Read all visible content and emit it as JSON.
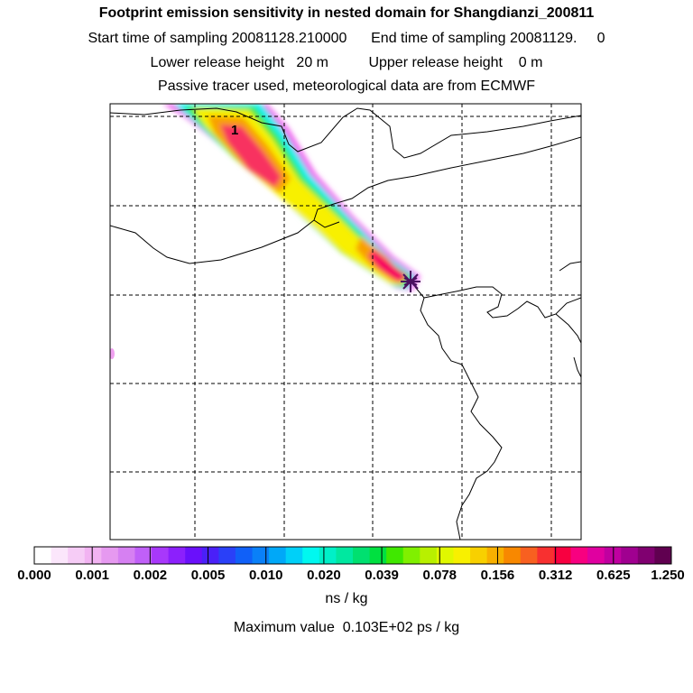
{
  "header": {
    "title": "Footprint emission sensitivity in nested domain for Shangdianzi_200811",
    "sampling_line": "Start time of sampling 20081128.210000      End time of sampling 20081129.     0",
    "release_line": "Lower release height   20 m          Upper release height    0 m",
    "tracer_line": "Passive tracer used, meteorological data are from ECMWF"
  },
  "map": {
    "plume_label": "1",
    "receptor_marker": "star-marker"
  },
  "colorbar": {
    "colors": [
      "#ffffff",
      "#fbe6fb",
      "#f6ccf6",
      "#f2b3f2",
      "#e699f0",
      "#d680f2",
      "#c060f8",
      "#a838fb",
      "#8c20fc",
      "#6a10fb",
      "#4a20f8",
      "#2a40f8",
      "#1060f8",
      "#0a80f8",
      "#00a8f8",
      "#00d0f8",
      "#00f8f0",
      "#00f0c8",
      "#00e8a0",
      "#00e070",
      "#00e040",
      "#40e800",
      "#80f000",
      "#b8f000",
      "#e0f800",
      "#f8f000",
      "#f8d000",
      "#f8b000",
      "#f88800",
      "#f86020",
      "#f83030",
      "#f80040",
      "#f80080",
      "#e000a0",
      "#c000a0",
      "#a00090",
      "#800070",
      "#600050"
    ],
    "tick_labels": [
      "0.000",
      "0.001",
      "0.002",
      "0.005",
      "0.010",
      "0.020",
      "0.039",
      "0.078",
      "0.156",
      "0.312",
      "0.625",
      "1.250"
    ],
    "units": "ns / kg"
  },
  "footer": {
    "max_value": "Maximum value  0.103E+02 ps / kg"
  }
}
